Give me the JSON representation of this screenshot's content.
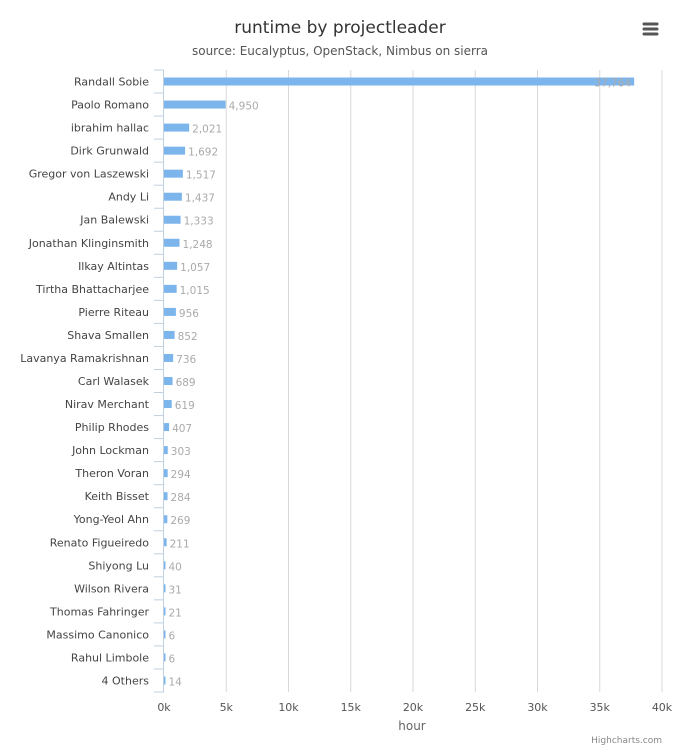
{
  "chart_data": {
    "type": "bar",
    "orientation": "horizontal",
    "title": "runtime by projectleader",
    "subtitle": "source: Eucalyptus, OpenStack, Nimbus on sierra",
    "xlabel": "hour",
    "ylabel": "",
    "xlim": [
      0,
      40000
    ],
    "ticks": [
      0,
      5000,
      10000,
      15000,
      20000,
      25000,
      30000,
      35000,
      40000
    ],
    "tick_labels": [
      "0k",
      "5k",
      "10k",
      "15k",
      "20k",
      "25k",
      "30k",
      "35k",
      "40k"
    ],
    "grid": true,
    "legend": false,
    "bar_color": "#7cb5ec",
    "categories": [
      "Randall Sobie",
      "Paolo Romano",
      "ibrahim hallac",
      "Dirk Grunwald",
      "Gregor von Laszewski",
      "Andy Li",
      "Jan Balewski",
      "Jonathan Klinginsmith",
      "Ilkay Altintas",
      "Tirtha Bhattacharjee",
      "Pierre Riteau",
      "Shava Smallen",
      "Lavanya Ramakrishnan",
      "Carl Walasek",
      "Nirav Merchant",
      "Philip Rhodes",
      "John Lockman",
      "Theron Voran",
      "Keith Bisset",
      "Yong-Yeol Ahn",
      "Renato Figueiredo",
      "Shiyong Lu",
      "Wilson Rivera",
      "Thomas Fahringer",
      "Massimo Canonico",
      "Rahul Limbole",
      "4 Others"
    ],
    "values": [
      37764,
      4950,
      2021,
      1692,
      1517,
      1437,
      1333,
      1248,
      1057,
      1015,
      956,
      852,
      736,
      689,
      619,
      407,
      303,
      294,
      284,
      269,
      211,
      40,
      31,
      21,
      6,
      6,
      14
    ],
    "value_labels": [
      "37,764",
      "4,950",
      "2,021",
      "1,692",
      "1,517",
      "1,437",
      "1,333",
      "1,248",
      "1,057",
      "1,015",
      "956",
      "852",
      "736",
      "689",
      "619",
      "407",
      "303",
      "294",
      "284",
      "269",
      "211",
      "40",
      "31",
      "21",
      "6",
      "6",
      "14"
    ]
  },
  "credits": "Highcharts.com",
  "menu_icon": "hamburger-menu-icon"
}
